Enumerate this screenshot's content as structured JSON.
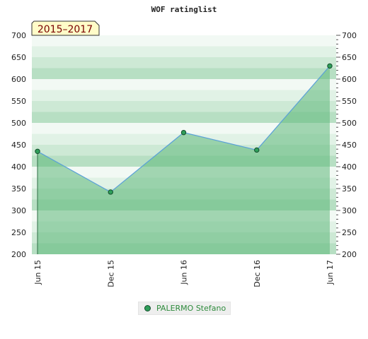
{
  "chart_data": {
    "type": "area",
    "title": "WOF ratinglist",
    "period_label": "2015–2017",
    "categories": [
      "Jun 15",
      "Dec 15",
      "Jun 16",
      "Dec 16",
      "Jun 17"
    ],
    "series": [
      {
        "name": "PALERMO Stefano",
        "values": [
          435,
          342,
          478,
          438,
          630
        ]
      }
    ],
    "ylim": [
      200,
      700
    ],
    "yticks": [
      200,
      250,
      300,
      350,
      400,
      450,
      500,
      550,
      600,
      650,
      700
    ],
    "y_axes": "left-and-right",
    "grid": "horizontal-bands",
    "legend_position": "bottom-center",
    "colors": {
      "line": "#5aa0d8",
      "fill": "#5fb87a",
      "marker": "#2f9e5a",
      "marker_border": "#124d2a",
      "legend_text": "#2e8b3c",
      "period_bg": "#fffcc8",
      "period_text": "#7a0000"
    }
  }
}
